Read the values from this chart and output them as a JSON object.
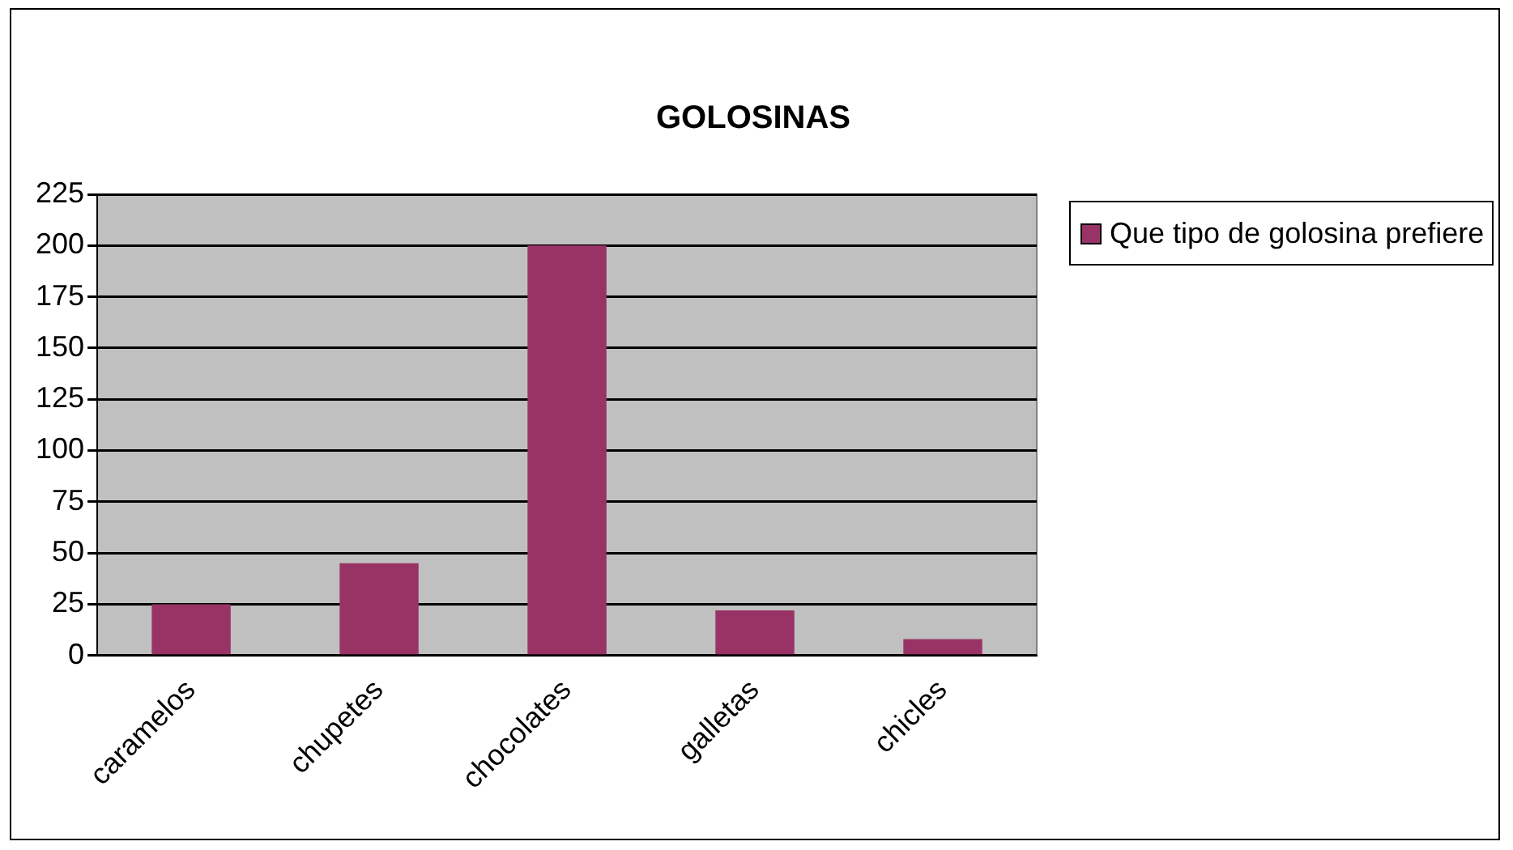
{
  "chart_data": {
    "type": "bar",
    "title": "GOLOSINAS",
    "categories": [
      "caramelos",
      "chupetes",
      "chocolates",
      "galletas",
      "chicles"
    ],
    "series": [
      {
        "name": "Que tipo de golosina prefiere",
        "color": "#993366",
        "values": [
          25,
          45,
          200,
          22,
          8
        ]
      }
    ],
    "ylim": [
      0,
      225
    ],
    "yticks": [
      0,
      25,
      50,
      75,
      100,
      125,
      150,
      175,
      200,
      225
    ],
    "grid": "y",
    "legend": "right"
  }
}
